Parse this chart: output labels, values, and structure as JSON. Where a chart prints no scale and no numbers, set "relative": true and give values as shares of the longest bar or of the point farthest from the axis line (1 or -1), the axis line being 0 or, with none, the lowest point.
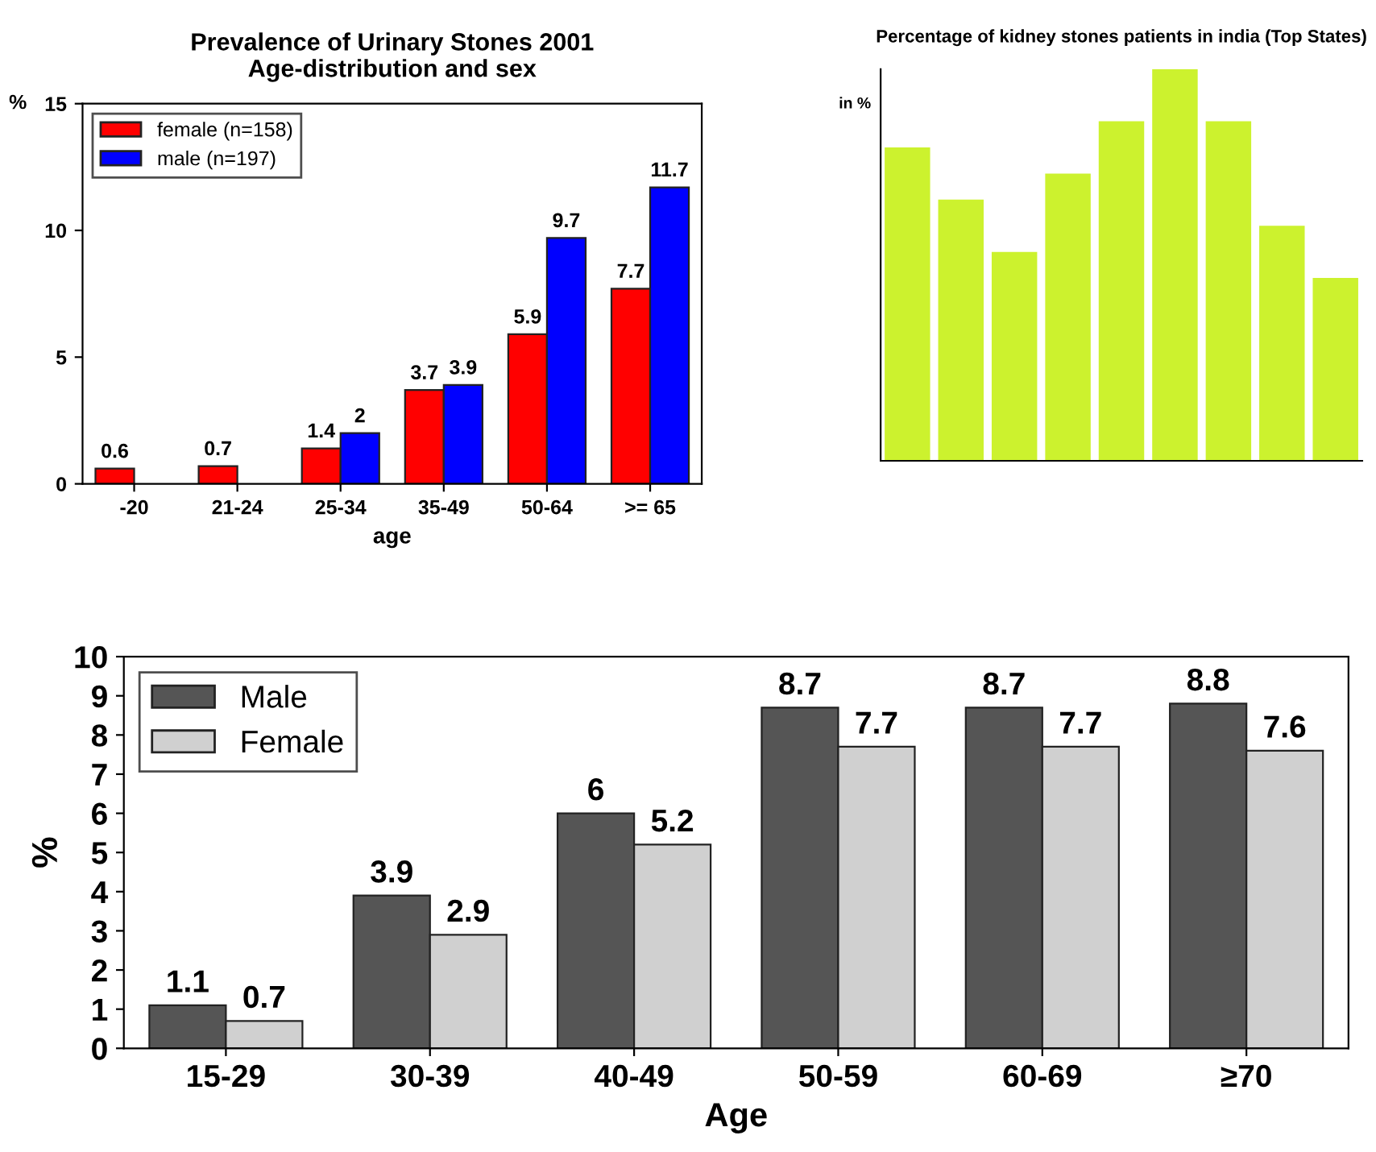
{
  "chart_data": [
    {
      "type": "bar",
      "title": "Prevalence of Urinary Stones 2001\nAge-distribution and sex",
      "xlabel": "age",
      "ylabel": "%",
      "categories": [
        "-20",
        "21-24",
        "25-34",
        "35-49",
        "50-64",
        ">= 65"
      ],
      "series": [
        {
          "name": "female (n=158)",
          "color": "#ff0000",
          "values": [
            0.6,
            0.7,
            1.4,
            3.7,
            5.9,
            7.7
          ]
        },
        {
          "name": "male (n=197)",
          "color": "#0000ff",
          "values": [
            null,
            null,
            2,
            3.9,
            9.7,
            11.7
          ]
        }
      ],
      "ylim": [
        0,
        15
      ],
      "yticks": [
        0,
        5,
        10,
        15
      ],
      "legend": "top left",
      "data_labels": true
    },
    {
      "type": "bar",
      "title": "Percentage of kidney stones patients in india (Top States)",
      "ylabel": "in %",
      "categories": [
        null,
        null,
        null,
        null,
        null,
        null,
        null,
        null,
        null
      ],
      "relative": true,
      "series": [
        {
          "color": "#ccf22e",
          "values": [
            0.8,
            0.667,
            0.533,
            0.733,
            0.867,
            1,
            0.867,
            0.6,
            0.467
          ]
        }
      ]
    },
    {
      "type": "bar",
      "xlabel": "Age",
      "ylabel": "%",
      "categories": [
        "15-29",
        "30-39",
        "40-49",
        "50-59",
        "60-69",
        "≥70"
      ],
      "series": [
        {
          "name": "Male",
          "color": "#555555",
          "values": [
            1.1,
            3.9,
            6,
            8.7,
            8.7,
            8.8
          ]
        },
        {
          "name": "Female",
          "color": "#d0d0d0",
          "values": [
            0.7,
            2.9,
            5.2,
            7.7,
            7.7,
            7.6
          ]
        }
      ],
      "ylim": [
        0,
        10
      ],
      "yticks": [
        0,
        1,
        2,
        3,
        4,
        5,
        6,
        7,
        8,
        9,
        10
      ],
      "legend": "top left",
      "data_labels": true
    }
  ]
}
